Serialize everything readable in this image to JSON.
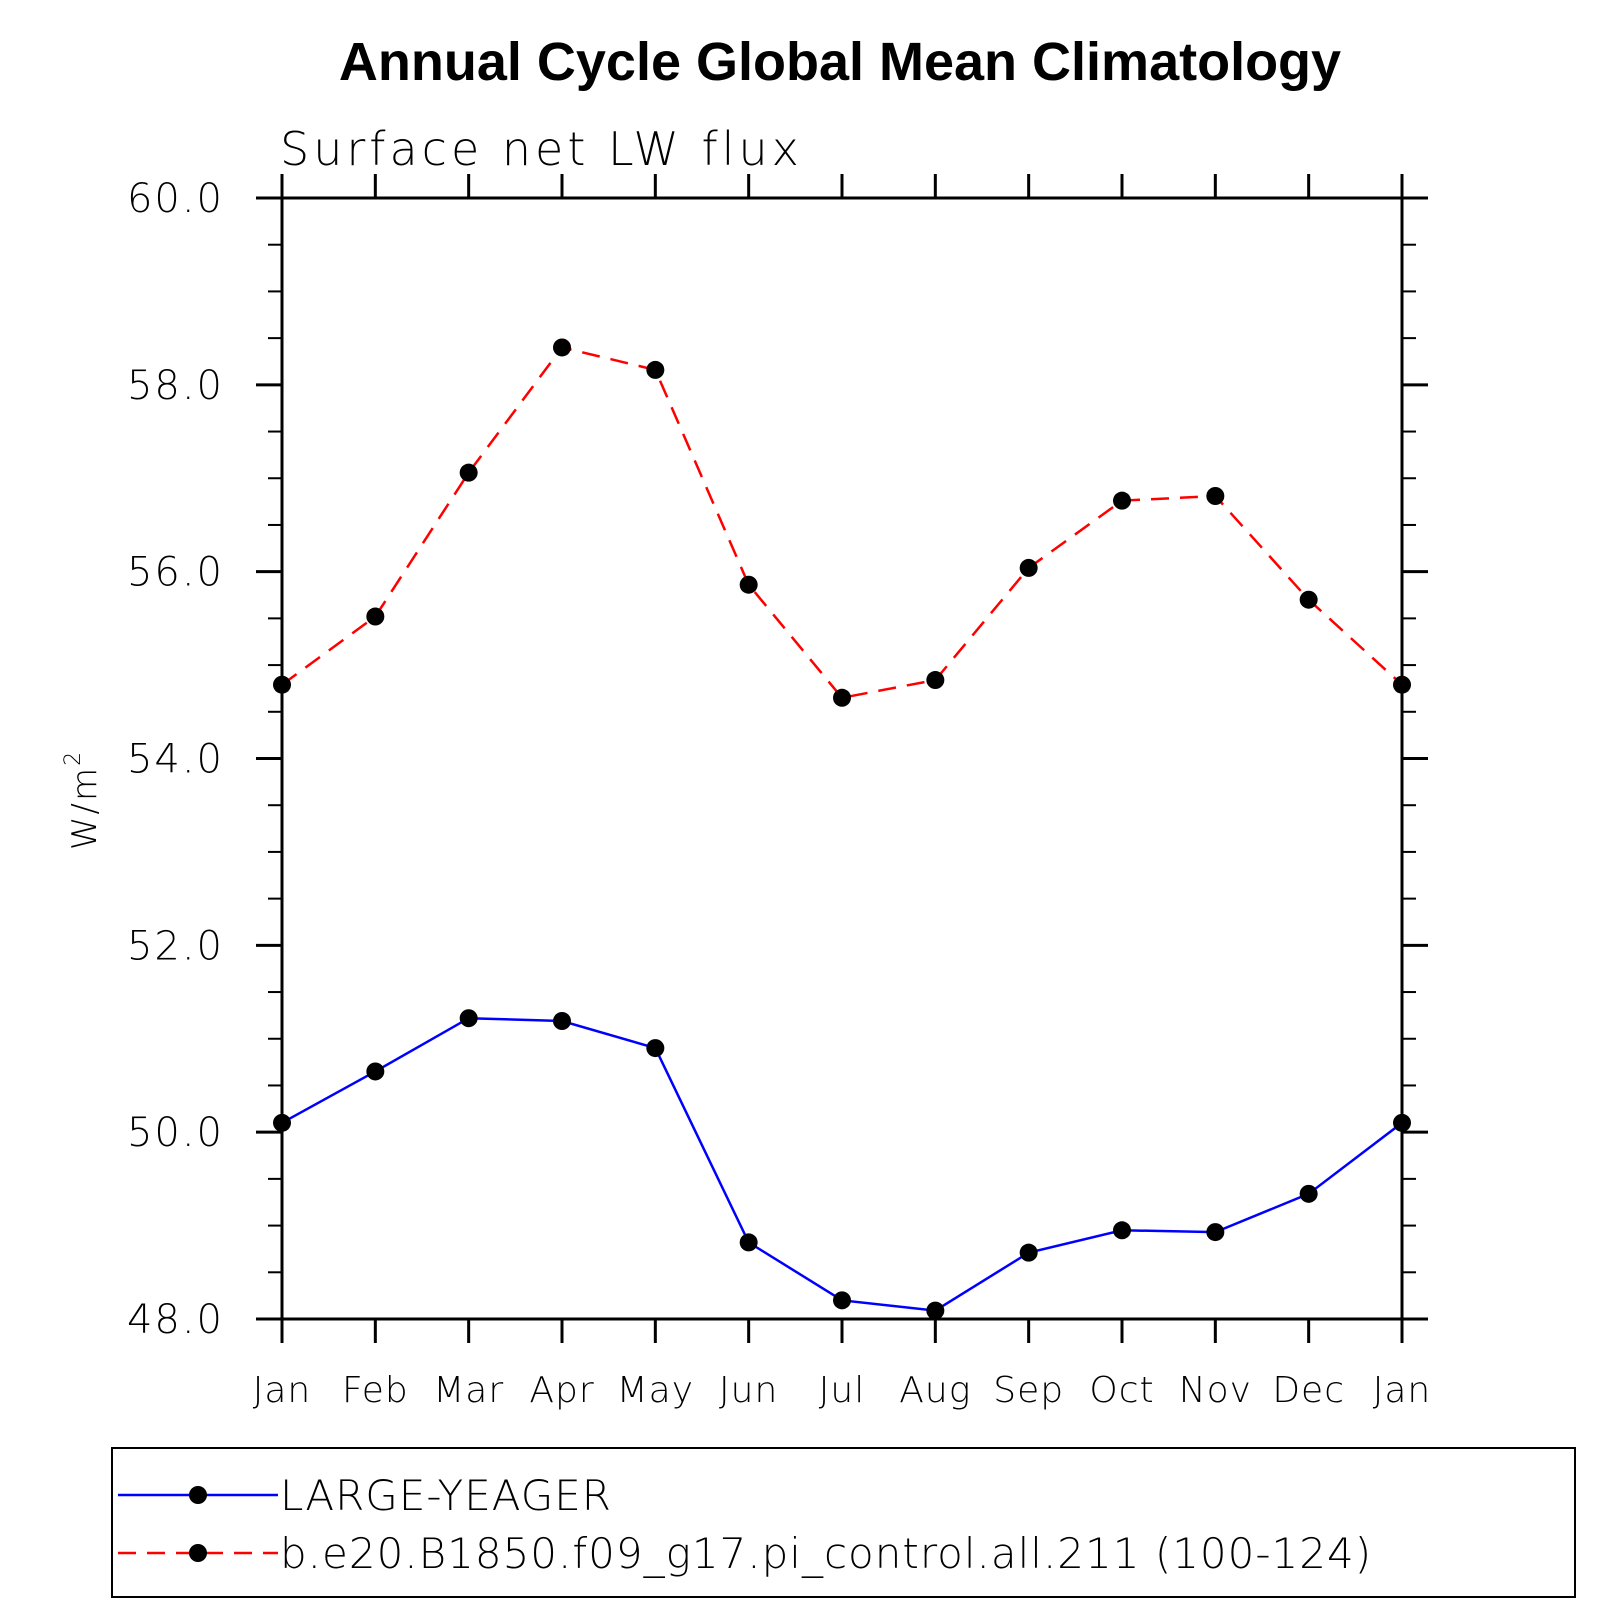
{
  "chart_data": {
    "type": "line",
    "title": "Annual Cycle Global Mean Climatology",
    "subtitle": "Surface net LW flux",
    "ylabel": "W/m",
    "ylabel_sup": "2",
    "ylim": [
      48.0,
      60.0
    ],
    "yticks": [
      "48.0",
      "50.0",
      "52.0",
      "54.0",
      "56.0",
      "58.0",
      "60.0"
    ],
    "categories": [
      "Jan",
      "Feb",
      "Mar",
      "Apr",
      "May",
      "Jun",
      "Jul",
      "Aug",
      "Sep",
      "Oct",
      "Nov",
      "Dec",
      "Jan"
    ],
    "series": [
      {
        "name": "LARGE-YEAGER",
        "color": "#0000ff",
        "dash": "solid",
        "values": [
          50.1,
          50.65,
          51.22,
          51.19,
          50.9,
          48.82,
          48.2,
          48.09,
          48.71,
          48.95,
          48.93,
          49.34,
          50.1
        ]
      },
      {
        "name": "b.e20.B1850.f09_g17.pi_control.all.211 (100-124)",
        "color": "#ff0000",
        "dash": "dashed",
        "values": [
          54.79,
          55.52,
          57.06,
          58.4,
          58.16,
          55.86,
          54.65,
          54.84,
          56.04,
          56.76,
          56.81,
          55.7,
          54.79
        ]
      }
    ],
    "grid": false,
    "legend": "bottom"
  }
}
